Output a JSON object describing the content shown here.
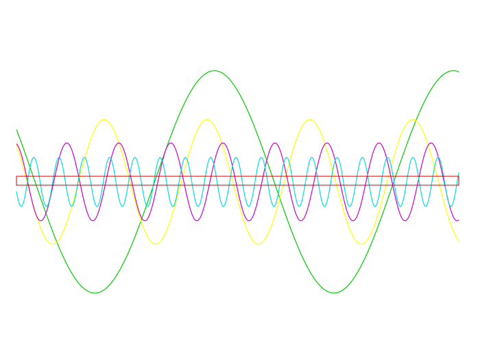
{
  "chart_data": {
    "type": "line",
    "title": "",
    "xlabel": "",
    "ylabel": "",
    "grid": false,
    "legend": "none",
    "xlim": [
      0,
      1
    ],
    "ylim": [
      -1.35,
      1.35
    ],
    "series": [
      {
        "color": "#00cc00",
        "function": "sine",
        "amplitude": 1.0,
        "cycles": 1.85,
        "phase_deg": 152
      },
      {
        "color": "#ffff00",
        "function": "sine",
        "amplitude": 0.56,
        "cycles": 4.3,
        "phase_deg": 143
      },
      {
        "color": "#cc00cc",
        "function": "sine",
        "amplitude": 0.35,
        "cycles": 8.5,
        "phase_deg": 102
      },
      {
        "color": "#00dddd",
        "function": "sine",
        "amplitude": 0.22,
        "cycles": 17.5,
        "phase_deg": 203
      }
    ],
    "band": {
      "color": "#cc0000",
      "y_top": 0.05,
      "y_bottom": -0.03
    }
  }
}
